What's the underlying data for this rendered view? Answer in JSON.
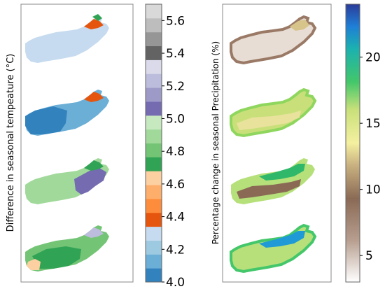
{
  "left_panel": {
    "ylabel": "Difference in seasonal tempeature (°C)",
    "colorbar": {
      "ticks": [
        "4.0",
        "4.2",
        "4.4",
        "4.6",
        "4.8",
        "5.0",
        "5.2",
        "5.4",
        "5.6"
      ],
      "range": [
        4.0,
        5.7
      ],
      "colors": [
        "#3182bd",
        "#6baed6",
        "#9ecae1",
        "#c6dbef",
        "#e6550d",
        "#fd8d3c",
        "#fdae6b",
        "#fdd0a2",
        "#31a354",
        "#74c476",
        "#a1d99b",
        "#c7e9c0",
        "#756bb1",
        "#9e9ac8",
        "#bcbddc",
        "#dadaeb",
        "#636363",
        "#969696",
        "#bdbdbd",
        "#d9d9d9"
      ]
    },
    "maps": [
      {
        "name": "map-1",
        "main": "#c6dbef",
        "south": "#c6dbef",
        "north_east": "#e6550d",
        "east_accent": "#31a354"
      },
      {
        "name": "map-2",
        "main": "#6baed6",
        "west": "#3182bd",
        "north_east": "#e6550d"
      },
      {
        "name": "map-3",
        "main": "#a1d99b",
        "east": "#756bb1",
        "north_east": "#31a354"
      },
      {
        "name": "map-4",
        "main": "#74c476",
        "core": "#31a354",
        "south_west": "#fdd0a2",
        "north_east": "#bcbddc"
      }
    ]
  },
  "right_panel": {
    "ylabel": "Percentage change in seasonal Precipitation (%)",
    "colorbar": {
      "ticks": [
        "5",
        "10",
        "15",
        "20"
      ],
      "tick_values": [
        5,
        10,
        15,
        20
      ],
      "range": [
        3,
        24
      ]
    },
    "maps": [
      {
        "name": "map-1",
        "main": "#e8ddd4",
        "edge": "#9a7a66",
        "north_east": "#d6c48a"
      },
      {
        "name": "map-2",
        "main": "#c9e07a",
        "edge": "#8fd65e",
        "band": "#e9e29c"
      },
      {
        "name": "map-3",
        "main": "#b5e07a",
        "band": "#8a6a55",
        "north": "#2fb86a"
      },
      {
        "name": "map-4",
        "main": "#b8e07a",
        "north": "#1f9ad6",
        "edge": "#43c76a"
      }
    ]
  }
}
